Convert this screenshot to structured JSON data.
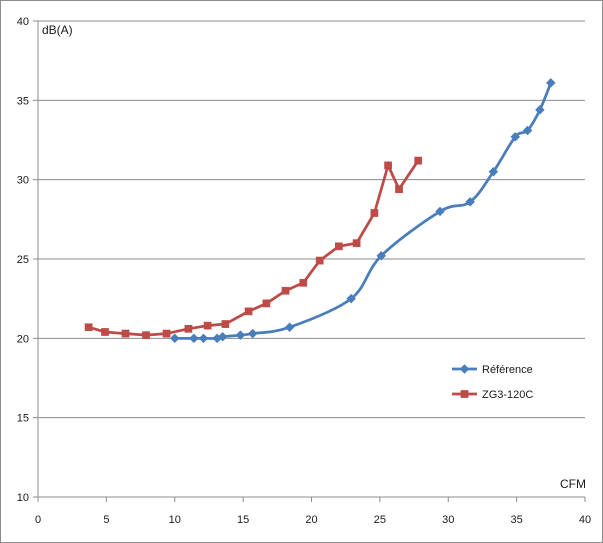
{
  "chart_data": {
    "type": "line",
    "ylabel": "dB(A)",
    "xlabel": "CFM",
    "xlim": [
      0,
      40
    ],
    "ylim": [
      10,
      40
    ],
    "x_ticks": [
      0,
      5,
      10,
      15,
      20,
      25,
      30,
      35,
      40
    ],
    "y_ticks": [
      10,
      15,
      20,
      25,
      30,
      35,
      40
    ],
    "grid": "horizontal",
    "legend_position": "right",
    "series": [
      {
        "name": "Référence",
        "color": "#4a7ebb",
        "marker": "diamond",
        "smooth": true,
        "points": [
          [
            10.0,
            20.0
          ],
          [
            11.4,
            20.0
          ],
          [
            12.1,
            20.0
          ],
          [
            13.1,
            20.0
          ],
          [
            13.5,
            20.1
          ],
          [
            14.8,
            20.2
          ],
          [
            15.7,
            20.3
          ],
          [
            18.4,
            20.7
          ],
          [
            22.9,
            22.5
          ],
          [
            25.1,
            25.2
          ],
          [
            29.4,
            28.0
          ],
          [
            31.6,
            28.6
          ],
          [
            33.3,
            30.5
          ],
          [
            34.9,
            32.7
          ],
          [
            35.8,
            33.1
          ],
          [
            36.7,
            34.4
          ],
          [
            37.5,
            36.1
          ]
        ]
      },
      {
        "name": "ZG3-120C",
        "color": "#be4b48",
        "marker": "square",
        "smooth": false,
        "points": [
          [
            3.7,
            20.7
          ],
          [
            4.9,
            20.4
          ],
          [
            6.4,
            20.3
          ],
          [
            7.9,
            20.2
          ],
          [
            9.4,
            20.3
          ],
          [
            11.0,
            20.6
          ],
          [
            12.4,
            20.8
          ],
          [
            13.7,
            20.9
          ],
          [
            15.4,
            21.7
          ],
          [
            16.7,
            22.2
          ],
          [
            18.1,
            23.0
          ],
          [
            19.4,
            23.5
          ],
          [
            20.6,
            24.9
          ],
          [
            22.0,
            25.8
          ],
          [
            23.3,
            26.0
          ],
          [
            24.6,
            27.9
          ],
          [
            25.6,
            30.9
          ],
          [
            26.4,
            29.4
          ],
          [
            27.8,
            31.2
          ]
        ]
      }
    ]
  }
}
